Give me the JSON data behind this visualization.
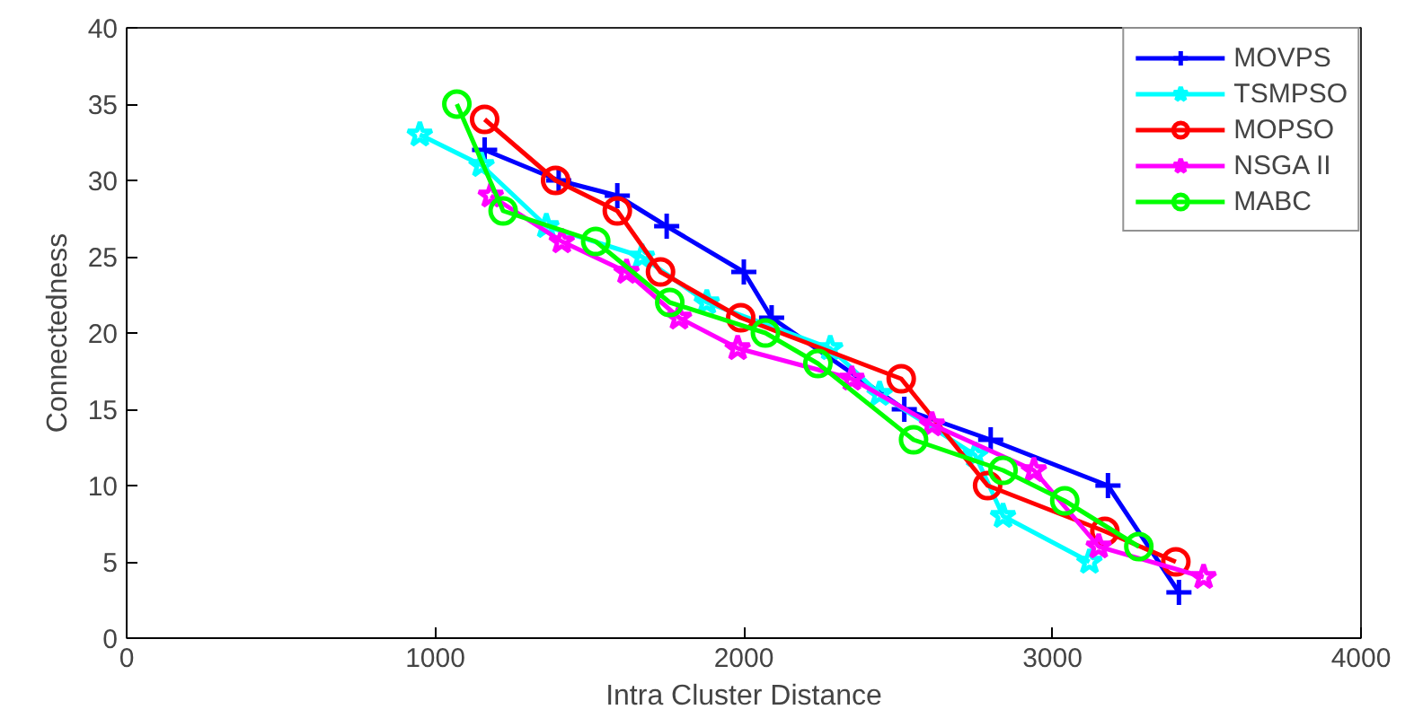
{
  "chart_data": {
    "type": "line",
    "xlabel": "Intra Cluster Distance",
    "ylabel": "Connectedness",
    "xlim": [
      0,
      4000
    ],
    "xticks": [
      0,
      1000,
      2000,
      3000,
      4000
    ],
    "ylim": [
      0,
      40
    ],
    "yticks": [
      0,
      5,
      10,
      15,
      20,
      25,
      30,
      35,
      40
    ],
    "grid": false,
    "legend": "top right",
    "series": [
      {
        "name": "MOVPS",
        "color": "#0000ff",
        "marker": "cross",
        "x": [
          1160,
          1400,
          1590,
          1750,
          2000,
          2090,
          2520,
          2800,
          3180,
          3410
        ],
        "values": [
          32,
          30,
          29,
          27,
          24,
          21,
          15,
          13,
          10,
          3
        ]
      },
      {
        "name": "TSMPSO",
        "color": "#00ffff",
        "marker": "star",
        "x": [
          950,
          1150,
          1360,
          1670,
          1880,
          2280,
          2440,
          2750,
          2840,
          3120
        ],
        "values": [
          33,
          31,
          27,
          25,
          22,
          19,
          16,
          12,
          8,
          5
        ]
      },
      {
        "name": "MOPSO",
        "color": "#ff0000",
        "marker": "circle",
        "x": [
          1160,
          1390,
          1590,
          1730,
          1990,
          2510,
          2790,
          3170,
          3400
        ],
        "values": [
          34,
          30,
          28,
          24,
          21,
          17,
          10,
          7,
          5
        ]
      },
      {
        "name": "NSGA II",
        "color": "#ff00ff",
        "marker": "star",
        "x": [
          1180,
          1410,
          1620,
          1790,
          1980,
          2350,
          2610,
          2940,
          3150,
          3490
        ],
        "values": [
          29,
          26,
          24,
          21,
          19,
          17,
          14,
          11,
          6,
          4
        ]
      },
      {
        "name": "MABC",
        "color": "#00ff00",
        "marker": "circle",
        "x": [
          1070,
          1220,
          1520,
          1760,
          2070,
          2240,
          2550,
          2840,
          3040,
          3280
        ],
        "values": [
          35,
          28,
          26,
          22,
          20,
          18,
          13,
          11,
          9,
          6
        ]
      }
    ]
  }
}
